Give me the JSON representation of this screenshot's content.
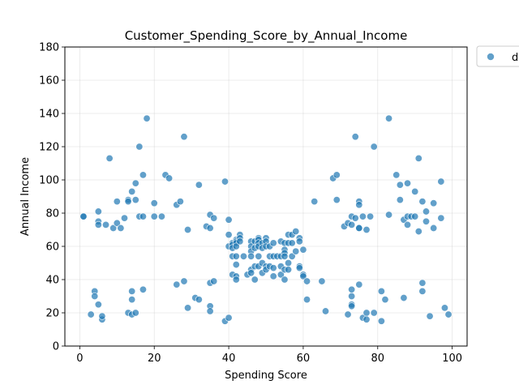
{
  "chart_data": {
    "type": "scatter",
    "title": "Customer_Spending_Score_by_Annual_Income",
    "xlabel": "Spending Score",
    "ylabel": "Annual Income",
    "xlim": [
      -4,
      104
    ],
    "ylim": [
      0,
      180
    ],
    "xticks": [
      0,
      20,
      40,
      60,
      80,
      100
    ],
    "yticks": [
      0,
      20,
      40,
      60,
      80,
      100,
      120,
      140,
      160,
      180
    ],
    "grid": true,
    "legend_position": "outside-top-right",
    "series": [
      {
        "name": "d",
        "color": "#1f77b4",
        "points": [
          [
            1,
            78
          ],
          [
            1,
            78
          ],
          [
            3,
            19
          ],
          [
            4,
            33
          ],
          [
            4,
            30
          ],
          [
            5,
            81
          ],
          [
            5,
            75
          ],
          [
            5,
            73
          ],
          [
            5,
            25
          ],
          [
            6,
            16
          ],
          [
            6,
            18
          ],
          [
            7,
            73
          ],
          [
            8,
            113
          ],
          [
            9,
            71
          ],
          [
            10,
            74
          ],
          [
            10,
            87
          ],
          [
            11,
            71
          ],
          [
            12,
            77
          ],
          [
            13,
            88
          ],
          [
            13,
            87
          ],
          [
            13,
            20
          ],
          [
            14,
            93
          ],
          [
            14,
            33
          ],
          [
            14,
            28
          ],
          [
            14,
            19
          ],
          [
            15,
            98
          ],
          [
            15,
            88
          ],
          [
            15,
            20
          ],
          [
            16,
            120
          ],
          [
            16,
            78
          ],
          [
            17,
            78
          ],
          [
            17,
            103
          ],
          [
            17,
            34
          ],
          [
            18,
            137
          ],
          [
            20,
            86
          ],
          [
            20,
            78
          ],
          [
            22,
            78
          ],
          [
            23,
            103
          ],
          [
            24,
            101
          ],
          [
            26,
            37
          ],
          [
            26,
            85
          ],
          [
            27,
            87
          ],
          [
            28,
            126
          ],
          [
            28,
            39
          ],
          [
            29,
            70
          ],
          [
            29,
            23
          ],
          [
            31,
            29
          ],
          [
            32,
            97
          ],
          [
            32,
            28
          ],
          [
            34,
            72
          ],
          [
            35,
            79
          ],
          [
            35,
            71
          ],
          [
            35,
            38
          ],
          [
            35,
            24
          ],
          [
            35,
            21
          ],
          [
            36,
            77
          ],
          [
            36,
            39
          ],
          [
            39,
            99
          ],
          [
            39,
            15
          ],
          [
            40,
            76
          ],
          [
            40,
            67
          ],
          [
            40,
            60
          ],
          [
            40,
            17
          ],
          [
            41,
            62
          ],
          [
            41,
            61
          ],
          [
            41,
            59
          ],
          [
            41,
            54
          ],
          [
            41,
            43
          ],
          [
            42,
            64
          ],
          [
            42,
            63
          ],
          [
            42,
            62
          ],
          [
            42,
            60
          ],
          [
            42,
            54
          ],
          [
            42,
            49
          ],
          [
            42,
            42
          ],
          [
            42,
            40
          ],
          [
            43,
            67
          ],
          [
            43,
            65
          ],
          [
            43,
            63
          ],
          [
            44,
            54
          ],
          [
            45,
            43
          ],
          [
            46,
            63
          ],
          [
            46,
            60
          ],
          [
            46,
            57
          ],
          [
            46,
            54
          ],
          [
            46,
            46
          ],
          [
            46,
            44
          ],
          [
            47,
            63
          ],
          [
            47,
            59
          ],
          [
            47,
            48
          ],
          [
            47,
            40
          ],
          [
            48,
            65
          ],
          [
            48,
            64
          ],
          [
            48,
            62
          ],
          [
            48,
            60
          ],
          [
            48,
            54
          ],
          [
            48,
            48
          ],
          [
            49,
            62
          ],
          [
            49,
            59
          ],
          [
            49,
            50
          ],
          [
            49,
            44
          ],
          [
            50,
            65
          ],
          [
            50,
            63
          ],
          [
            50,
            60
          ],
          [
            50,
            48
          ],
          [
            50,
            46
          ],
          [
            51,
            60
          ],
          [
            51,
            54
          ],
          [
            51,
            48
          ],
          [
            52,
            62
          ],
          [
            52,
            54
          ],
          [
            52,
            47
          ],
          [
            52,
            42
          ],
          [
            53,
            54
          ],
          [
            54,
            63
          ],
          [
            54,
            54
          ],
          [
            54,
            48
          ],
          [
            54,
            43
          ],
          [
            55,
            62
          ],
          [
            55,
            58
          ],
          [
            55,
            56
          ],
          [
            55,
            54
          ],
          [
            55,
            46
          ],
          [
            55,
            40
          ],
          [
            56,
            67
          ],
          [
            56,
            62
          ],
          [
            56,
            50
          ],
          [
            56,
            46
          ],
          [
            57,
            67
          ],
          [
            57,
            62
          ],
          [
            57,
            54
          ],
          [
            58,
            69
          ],
          [
            58,
            57
          ],
          [
            59,
            65
          ],
          [
            59,
            63
          ],
          [
            59,
            48
          ],
          [
            59,
            47
          ],
          [
            60,
            58
          ],
          [
            60,
            43
          ],
          [
            60,
            42
          ],
          [
            61,
            39
          ],
          [
            61,
            28
          ],
          [
            63,
            87
          ],
          [
            65,
            39
          ],
          [
            66,
            21
          ],
          [
            68,
            101
          ],
          [
            69,
            103
          ],
          [
            69,
            88
          ],
          [
            71,
            72
          ],
          [
            72,
            74
          ],
          [
            72,
            19
          ],
          [
            73,
            78
          ],
          [
            73,
            73
          ],
          [
            73,
            34
          ],
          [
            73,
            30
          ],
          [
            73,
            25
          ],
          [
            73,
            24
          ],
          [
            74,
            126
          ],
          [
            74,
            77
          ],
          [
            75,
            87
          ],
          [
            75,
            85
          ],
          [
            75,
            71
          ],
          [
            75,
            71
          ],
          [
            75,
            37
          ],
          [
            76,
            78
          ],
          [
            76,
            17
          ],
          [
            77,
            70
          ],
          [
            77,
            20
          ],
          [
            77,
            16
          ],
          [
            78,
            78
          ],
          [
            79,
            120
          ],
          [
            79,
            20
          ],
          [
            81,
            33
          ],
          [
            81,
            15
          ],
          [
            82,
            28
          ],
          [
            83,
            137
          ],
          [
            83,
            79
          ],
          [
            85,
            103
          ],
          [
            86,
            97
          ],
          [
            86,
            88
          ],
          [
            87,
            76
          ],
          [
            87,
            29
          ],
          [
            88,
            98
          ],
          [
            88,
            78
          ],
          [
            88,
            73
          ],
          [
            89,
            78
          ],
          [
            90,
            93
          ],
          [
            90,
            78
          ],
          [
            91,
            113
          ],
          [
            91,
            69
          ],
          [
            92,
            87
          ],
          [
            92,
            38
          ],
          [
            92,
            33
          ],
          [
            93,
            81
          ],
          [
            93,
            75
          ],
          [
            94,
            18
          ],
          [
            95,
            86
          ],
          [
            95,
            71
          ],
          [
            97,
            99
          ],
          [
            97,
            77
          ],
          [
            98,
            23
          ],
          [
            99,
            19
          ]
        ]
      }
    ]
  }
}
